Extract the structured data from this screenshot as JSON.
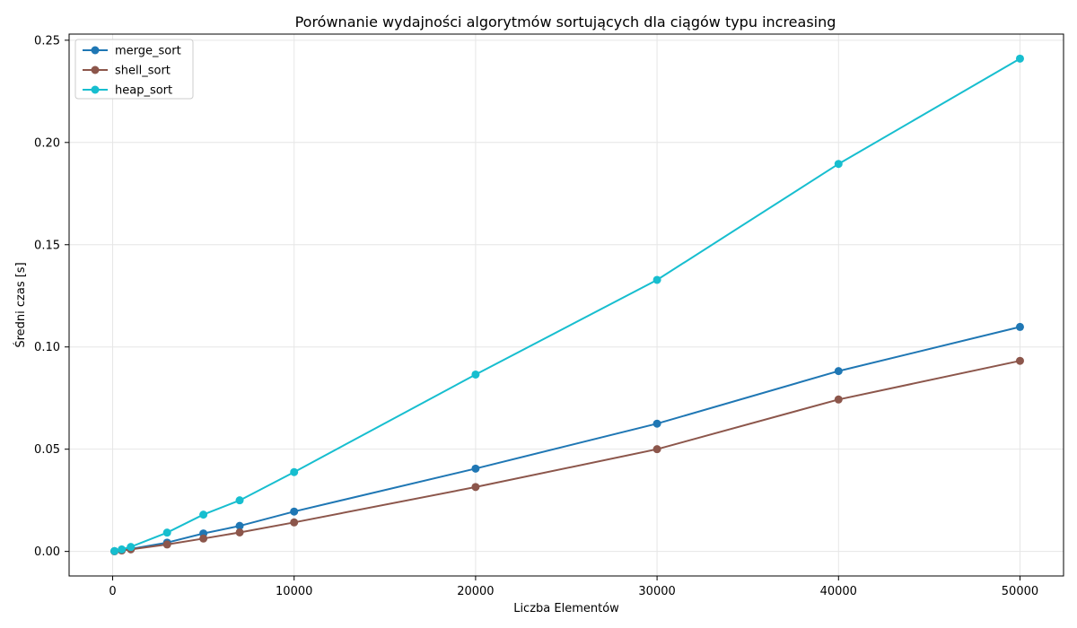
{
  "chart_data": {
    "type": "line",
    "title": "Porównanie wydajności algorytmów sortujących dla ciągów typu increasing",
    "xlabel": "Liczba Elementów",
    "ylabel": "Średni czas [s]",
    "xlim": [
      -2400,
      52400
    ],
    "ylim": [
      -0.012,
      0.253
    ],
    "xticks": [
      0,
      10000,
      20000,
      30000,
      40000,
      50000
    ],
    "xtick_labels": [
      "0",
      "10000",
      "20000",
      "30000",
      "40000",
      "50000"
    ],
    "yticks": [
      0.0,
      0.05,
      0.1,
      0.15,
      0.2,
      0.25
    ],
    "ytick_labels": [
      "0.00",
      "0.05",
      "0.10",
      "0.15",
      "0.20",
      "0.25"
    ],
    "grid": true,
    "legend_position": "upper-left",
    "x": [
      100,
      500,
      1000,
      3000,
      5000,
      7000,
      10000,
      20000,
      30000,
      40000,
      50000
    ],
    "series": [
      {
        "name": "merge_sort",
        "color": "#1f77b4",
        "values": [
          0.0001,
          0.0006,
          0.0012,
          0.0043,
          0.0088,
          0.0125,
          0.0195,
          0.0405,
          0.0625,
          0.0882,
          0.1098
        ]
      },
      {
        "name": "shell_sort",
        "color": "#8c564b",
        "values": [
          0.0001,
          0.0005,
          0.001,
          0.0034,
          0.0063,
          0.0093,
          0.0142,
          0.0315,
          0.05,
          0.0743,
          0.0932
        ]
      },
      {
        "name": "heap_sort",
        "color": "#17becf",
        "values": [
          0.0002,
          0.001,
          0.0022,
          0.0092,
          0.018,
          0.025,
          0.0388,
          0.0865,
          0.1328,
          0.1895,
          0.241
        ]
      }
    ]
  }
}
